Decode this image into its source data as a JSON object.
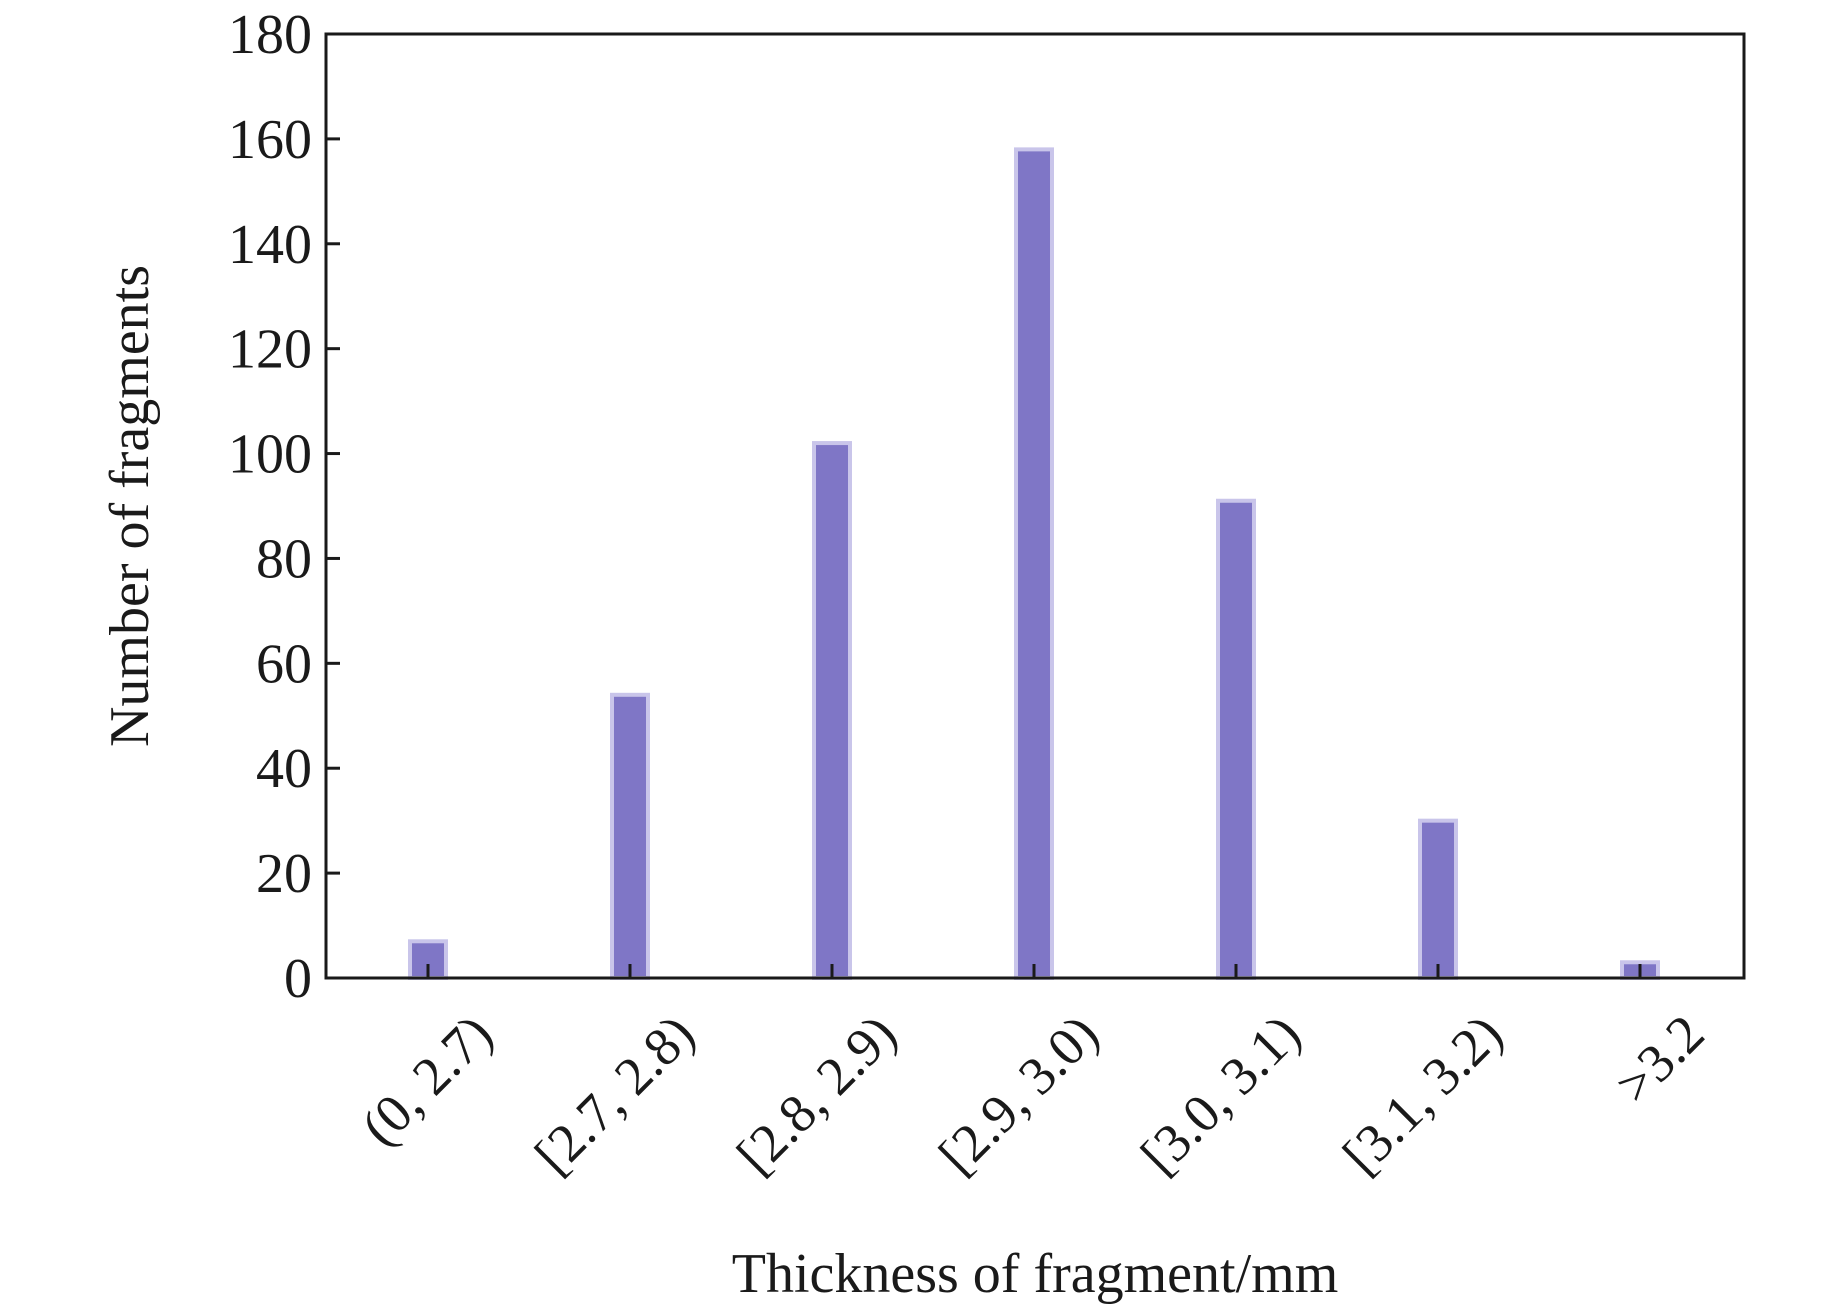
{
  "chart_data": {
    "type": "bar",
    "title": "",
    "xlabel": "Thickness of fragment/mm",
    "ylabel": "Number of fragments",
    "categories": [
      "(0, 2.7)",
      "[2.7, 2.8)",
      "[2.8, 2.9)",
      "[2.9, 3.0)",
      "[3.0, 3.1)",
      "[3.1, 3.2)",
      ">3.2"
    ],
    "values": [
      7,
      54,
      102,
      158,
      91,
      30,
      3
    ],
    "ylim": [
      0,
      180
    ],
    "yticks": [
      0,
      20,
      40,
      60,
      80,
      100,
      120,
      140,
      160,
      180
    ],
    "grid": false,
    "legend": "none",
    "bar_color": "#7f76c6",
    "bar_edge_color": "#c9c5ea"
  }
}
